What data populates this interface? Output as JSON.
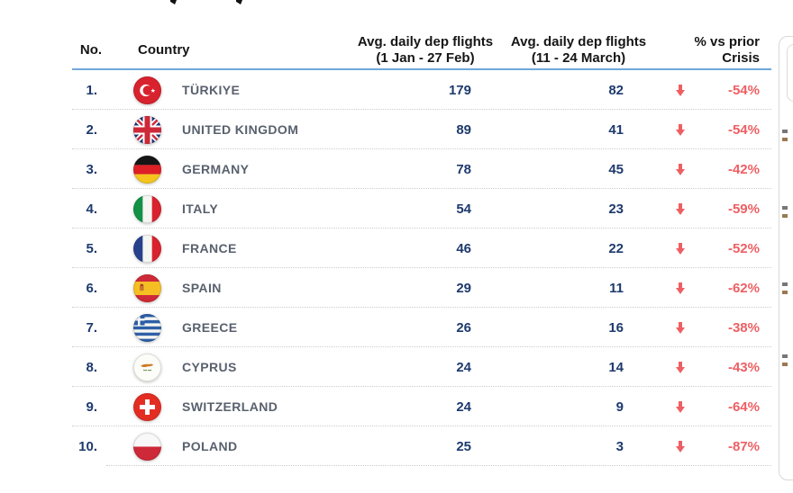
{
  "colors": {
    "accent_underline": "#70A8D8",
    "value_navy": "#1E3A6D",
    "country_gray": "#59616E",
    "negative_red": "#EE5F63",
    "separator": "#cccccc",
    "header_text": "#151515"
  },
  "table": {
    "header": {
      "no": "No.",
      "country": "Country",
      "flights1_line1": "Avg. daily dep flights",
      "flights1_line2": "(1 Jan - 27 Feb)",
      "flights2_line1": "Avg. daily dep flights",
      "flights2_line2": "(11 - 24 March)",
      "pct_line1": "% vs prior",
      "pct_line2": "Crisis"
    },
    "rows": [
      {
        "no": "1.",
        "flag": "turkiye",
        "country": "TÜRKIYE",
        "v1": "179",
        "v2": "82",
        "trend": "down",
        "pct": "-54%"
      },
      {
        "no": "2.",
        "flag": "uk",
        "country": "UNITED KINGDOM",
        "v1": "89",
        "v2": "41",
        "trend": "down",
        "pct": "-54%"
      },
      {
        "no": "3.",
        "flag": "germany",
        "country": "GERMANY",
        "v1": "78",
        "v2": "45",
        "trend": "down",
        "pct": "-42%"
      },
      {
        "no": "4.",
        "flag": "italy",
        "country": "ITALY",
        "v1": "54",
        "v2": "23",
        "trend": "down",
        "pct": "-59%"
      },
      {
        "no": "5.",
        "flag": "france",
        "country": "FRANCE",
        "v1": "46",
        "v2": "22",
        "trend": "down",
        "pct": "-52%"
      },
      {
        "no": "6.",
        "flag": "spain",
        "country": "SPAIN",
        "v1": "29",
        "v2": "11",
        "trend": "down",
        "pct": "-62%"
      },
      {
        "no": "7.",
        "flag": "greece",
        "country": "GREECE",
        "v1": "26",
        "v2": "16",
        "trend": "down",
        "pct": "-38%"
      },
      {
        "no": "8.",
        "flag": "cyprus",
        "country": "CYPRUS",
        "v1": "24",
        "v2": "14",
        "trend": "down",
        "pct": "-43%"
      },
      {
        "no": "9.",
        "flag": "switzerland",
        "country": "SWITZERLAND",
        "v1": "24",
        "v2": "9",
        "trend": "down",
        "pct": "-64%"
      },
      {
        "no": "10.",
        "flag": "poland",
        "country": "POLAND",
        "v1": "25",
        "v2": "3",
        "trend": "down",
        "pct": "-87%"
      }
    ]
  },
  "chart_data": {
    "type": "table",
    "columns": [
      "No.",
      "Country",
      "Avg. daily dep flights (1 Jan - 27 Feb)",
      "Avg. daily dep flights (11 - 24 March)",
      "% vs prior Crisis"
    ],
    "rows": [
      [
        "1.",
        "Türkiye",
        179,
        82,
        "-54%"
      ],
      [
        "2.",
        "United Kingdom",
        89,
        41,
        "-54%"
      ],
      [
        "3.",
        "Germany",
        78,
        45,
        "-42%"
      ],
      [
        "4.",
        "Italy",
        54,
        23,
        "-59%"
      ],
      [
        "5.",
        "France",
        46,
        22,
        "-52%"
      ],
      [
        "6.",
        "Spain",
        29,
        11,
        "-62%"
      ],
      [
        "7.",
        "Greece",
        26,
        16,
        "-38%"
      ],
      [
        "8.",
        "Cyprus",
        24,
        14,
        "-43%"
      ],
      [
        "9.",
        "Switzerland",
        24,
        9,
        "-64%"
      ],
      [
        "10.",
        "Poland",
        25,
        3,
        "-87%"
      ]
    ],
    "legend_position": "none",
    "notes": "every row shows a red downward trend arrow before the percentage"
  }
}
